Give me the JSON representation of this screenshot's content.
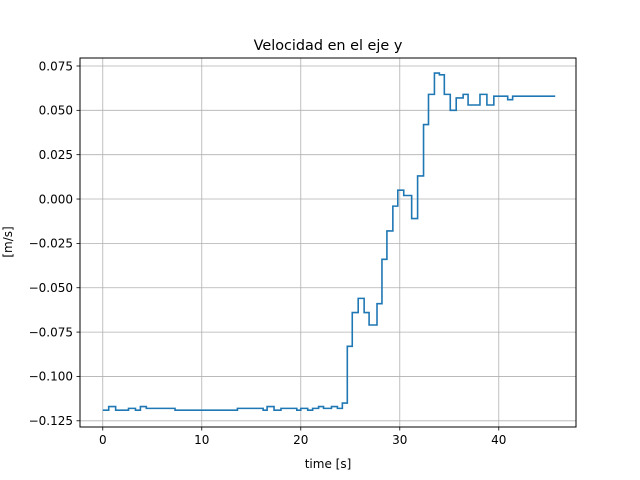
{
  "chart_data": {
    "type": "line",
    "title": "Velocidad en el eje y",
    "xlabel": "time [s]",
    "ylabel": "[m/s]",
    "xlim": [
      -2.3,
      47.8
    ],
    "ylim": [
      -0.1285,
      0.0795
    ],
    "x_ticks": [
      0,
      10,
      20,
      30,
      40
    ],
    "y_ticks": [
      -0.125,
      -0.1,
      -0.075,
      -0.05,
      -0.025,
      0.0,
      0.025,
      0.05,
      0.075
    ],
    "x_tick_labels": [
      "0",
      "10",
      "20",
      "30",
      "40"
    ],
    "y_tick_labels": [
      "−0.125",
      "−0.100",
      "−0.075",
      "−0.050",
      "−0.025",
      "0.000",
      "0.025",
      "0.050",
      "0.075"
    ],
    "grid": true,
    "step": true,
    "series": [
      {
        "color": "#1f77b4",
        "x": [
          0,
          0.6,
          1.3,
          2.6,
          3.3,
          3.8,
          4.4,
          7.3,
          7.8,
          13.6,
          16.2,
          16.6,
          17.3,
          18.0,
          19.6,
          20.0,
          20.7,
          21.2,
          21.8,
          22.3,
          23.1,
          23.7,
          24.2,
          24.7,
          25.2,
          25.8,
          26.4,
          26.9,
          27.7,
          28.2,
          28.7,
          29.3,
          29.8,
          30.4,
          31.2,
          31.8,
          32.4,
          32.9,
          33.5,
          34.0,
          34.5,
          35.1,
          35.7,
          36.4,
          36.9,
          37.5,
          38.1,
          38.8,
          39.5,
          40.2,
          40.9,
          41.4,
          45.7
        ],
        "y": [
          -0.119,
          -0.117,
          -0.119,
          -0.118,
          -0.119,
          -0.117,
          -0.118,
          -0.119,
          -0.119,
          -0.118,
          -0.119,
          -0.117,
          -0.119,
          -0.118,
          -0.119,
          -0.118,
          -0.119,
          -0.118,
          -0.117,
          -0.118,
          -0.117,
          -0.118,
          -0.115,
          -0.083,
          -0.064,
          -0.056,
          -0.064,
          -0.071,
          -0.059,
          -0.034,
          -0.018,
          -0.004,
          0.005,
          0.002,
          -0.011,
          0.013,
          0.042,
          0.059,
          0.071,
          0.07,
          0.059,
          0.05,
          0.057,
          0.059,
          0.053,
          0.053,
          0.059,
          0.053,
          0.058,
          0.058,
          0.056,
          0.058,
          0.058
        ]
      }
    ]
  }
}
